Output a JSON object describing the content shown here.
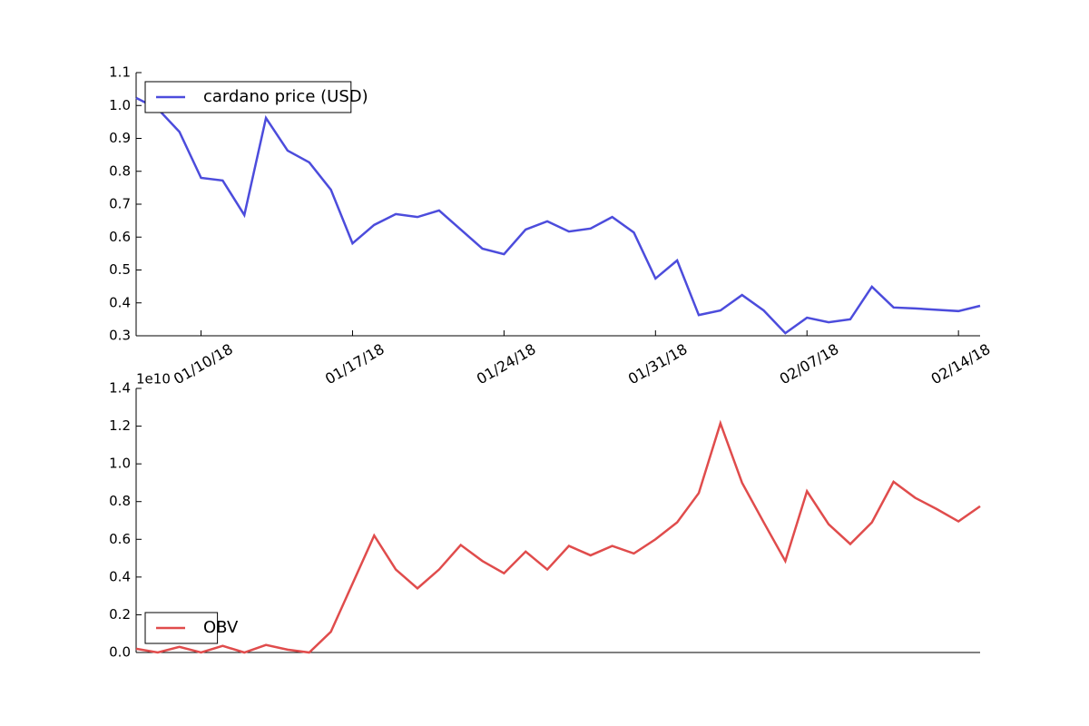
{
  "chart_data": [
    {
      "type": "line",
      "x": [
        "2018-01-07",
        "2018-01-08",
        "2018-01-09",
        "2018-01-10",
        "2018-01-11",
        "2018-01-12",
        "2018-01-13",
        "2018-01-14",
        "2018-01-15",
        "2018-01-16",
        "2018-01-17",
        "2018-01-18",
        "2018-01-19",
        "2018-01-20",
        "2018-01-21",
        "2018-01-22",
        "2018-01-23",
        "2018-01-24",
        "2018-01-25",
        "2018-01-26",
        "2018-01-27",
        "2018-01-28",
        "2018-01-29",
        "2018-01-30",
        "2018-01-31",
        "2018-02-01",
        "2018-02-02",
        "2018-02-03",
        "2018-02-04",
        "2018-02-05",
        "2018-02-06",
        "2018-02-07",
        "2018-02-08",
        "2018-02-09",
        "2018-02-10",
        "2018-02-11",
        "2018-02-12",
        "2018-02-13",
        "2018-02-14",
        "2018-02-15"
      ],
      "series": [
        {
          "name": "cardano price (USD)",
          "color": "#4c4cdc",
          "values": [
            1.023,
            0.99,
            0.92,
            0.78,
            0.772,
            0.667,
            0.962,
            0.863,
            0.827,
            0.744,
            0.581,
            0.637,
            0.67,
            0.661,
            0.681,
            0.623,
            0.565,
            0.548,
            0.623,
            0.648,
            0.617,
            0.626,
            0.661,
            0.614,
            0.474,
            0.529,
            0.363,
            0.377,
            0.424,
            0.377,
            0.308,
            0.355,
            0.341,
            0.35,
            0.449,
            0.386,
            0.383,
            0.379,
            0.375,
            0.391
          ]
        }
      ],
      "xlim": [
        "2018-01-07",
        "2018-02-15"
      ],
      "xticks": [
        {
          "value": "2018-01-10",
          "label": "01/10/18"
        },
        {
          "value": "2018-01-17",
          "label": "01/17/18"
        },
        {
          "value": "2018-01-24",
          "label": "01/24/18"
        },
        {
          "value": "2018-01-31",
          "label": "01/31/18"
        },
        {
          "value": "2018-02-07",
          "label": "02/07/18"
        },
        {
          "value": "2018-02-14",
          "label": "02/14/18"
        }
      ],
      "ylim": [
        0.3,
        1.1
      ],
      "yticks": [
        0.3,
        0.4,
        0.5,
        0.6,
        0.7,
        0.8,
        0.9,
        {
          "value": 1,
          "label": "1.0"
        },
        1.1
      ],
      "legend": "upper left"
    },
    {
      "type": "line",
      "x": [
        "2018-01-07",
        "2018-01-08",
        "2018-01-09",
        "2018-01-10",
        "2018-01-11",
        "2018-01-12",
        "2018-01-13",
        "2018-01-14",
        "2018-01-15",
        "2018-01-16",
        "2018-01-17",
        "2018-01-18",
        "2018-01-19",
        "2018-01-20",
        "2018-01-21",
        "2018-01-22",
        "2018-01-23",
        "2018-01-24",
        "2018-01-25",
        "2018-01-26",
        "2018-01-27",
        "2018-01-28",
        "2018-01-29",
        "2018-01-30",
        "2018-01-31",
        "2018-02-01",
        "2018-02-02",
        "2018-02-03",
        "2018-02-04",
        "2018-02-05",
        "2018-02-06",
        "2018-02-07",
        "2018-02-08",
        "2018-02-09",
        "2018-02-10",
        "2018-02-11",
        "2018-02-12",
        "2018-02-13",
        "2018-02-14",
        "2018-02-15"
      ],
      "series": [
        {
          "name": "OBV",
          "color": "#e04c4c",
          "values": [
            0.02,
            0,
            0.03,
            0,
            0.035,
            0,
            0.04,
            0.015,
            0,
            0.11,
            0.365,
            0.62,
            0.44,
            0.34,
            0.44,
            0.57,
            0.485,
            0.42,
            0.535,
            0.44,
            0.565,
            0.515,
            0.565,
            0.525,
            0.6,
            0.69,
            0.845,
            1.215,
            0.9,
            0.69,
            0.485,
            0.855,
            0.68,
            0.575,
            0.69,
            0.905,
            0.82,
            0.76,
            0.695,
            0.775
          ]
        }
      ],
      "xlim": [
        "2018-01-07",
        "2018-02-15"
      ],
      "ylim": [
        0,
        1.4
      ],
      "yticks": [
        {
          "value": 0,
          "label": "0.0"
        },
        0.2,
        0.4,
        0.6,
        0.8,
        {
          "value": 1,
          "label": "1.0"
        },
        1.2,
        1.4
      ],
      "y_offset_label": "1e10",
      "legend": "lower left"
    }
  ]
}
